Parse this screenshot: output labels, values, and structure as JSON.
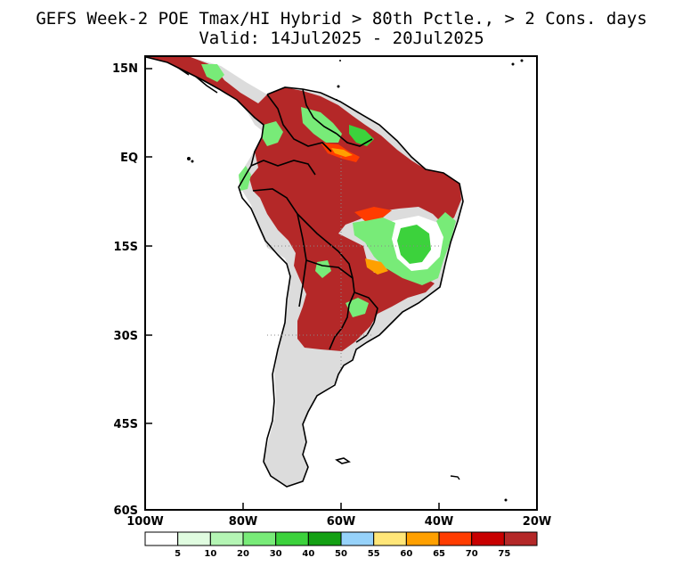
{
  "title": {
    "line1": "GEFS Week-2 POE Tmax/HI Hybrid > 80th Pctle., > 2 Cons. days",
    "line2": "Valid: 14Jul2025 - 20Jul2025"
  },
  "axes": {
    "lat_labels": [
      "15N",
      "EQ",
      "15S",
      "30S",
      "45S",
      "60S"
    ],
    "lon_labels": [
      "100W",
      "80W",
      "60W",
      "40W",
      "20W"
    ]
  },
  "colorbar": {
    "labels": [
      "5",
      "10",
      "20",
      "30",
      "40",
      "50",
      "55",
      "60",
      "65",
      "70",
      "75"
    ],
    "colors": [
      "#ffffff",
      "#e0fce0",
      "#b4f5b4",
      "#78eb78",
      "#3cd23c",
      "#14a014",
      "#96d2fa",
      "#ffe678",
      "#ffa000",
      "#ff3c00",
      "#c80000",
      "#b42828"
    ]
  },
  "map_colors": {
    "land_no_signal": "#dcdcdc",
    "dominant_high": "#b42828",
    "ocean": "#ffffff",
    "border": "#000000"
  }
}
